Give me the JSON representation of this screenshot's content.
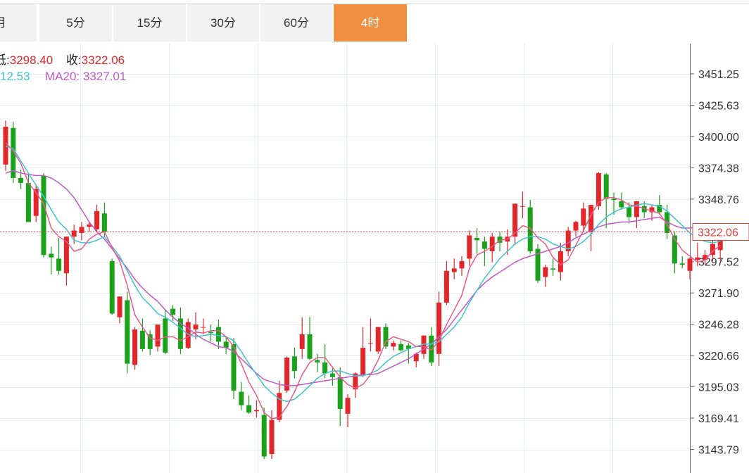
{
  "tabs": [
    {
      "label": "月",
      "active": false
    },
    {
      "label": "5分",
      "active": false
    },
    {
      "label": "15分",
      "active": false
    },
    {
      "label": "30分",
      "active": false
    },
    {
      "label": "60分",
      "active": false
    },
    {
      "label": "4时",
      "active": true
    }
  ],
  "ohlc_info": {
    "low_label": "低:",
    "low_value": "3298.40",
    "close_label": "收:",
    "close_value": "3322.06"
  },
  "ma_info": {
    "ma10_value": "12.53",
    "ma20_label": "MA20:",
    "ma20_value": "3327.01"
  },
  "current_price_label": "3322.06",
  "colors": {
    "up": "#e3262a",
    "down": "#1aa31a",
    "ma5": "#ea5a8a",
    "ma10": "#41c4cf",
    "ma20": "#c058c8",
    "tab_active": "#f08f3f",
    "price_line": "#e8403e"
  },
  "chart_data": {
    "type": "candlestick",
    "ylim": [
      3124.5,
      3476.0
    ],
    "y_ticks": [
      "3451.25",
      "3425.63",
      "3400.00",
      "3374.38",
      "3348.76",
      "3322.06",
      "3297.52",
      "3271.90",
      "3246.28",
      "3220.66",
      "3195.03",
      "3169.41",
      "3143.79"
    ],
    "current_price": 3322.06,
    "candles": [
      [
        3377,
        3413,
        3372,
        3408
      ],
      [
        3407,
        3412,
        3362,
        3366
      ],
      [
        3366,
        3373,
        3357,
        3362
      ],
      [
        3362,
        3369,
        3330,
        3330
      ],
      [
        3335,
        3361,
        3330,
        3357
      ],
      [
        3368,
        3370,
        3301,
        3303
      ],
      [
        3304,
        3310,
        3287,
        3301
      ],
      [
        3300,
        3317,
        3287,
        3290
      ],
      [
        3288,
        3315,
        3278,
        3318
      ],
      [
        3318,
        3328,
        3312,
        3323
      ],
      [
        3321,
        3330,
        3315,
        3326
      ],
      [
        3326,
        3330,
        3322,
        3328
      ],
      [
        3324,
        3344,
        3322,
        3339
      ],
      [
        3337,
        3346,
        3318,
        3322
      ],
      [
        3298,
        3300,
        3254,
        3255
      ],
      [
        3252,
        3268,
        3247,
        3269
      ],
      [
        3266,
        3273,
        3206,
        3214
      ],
      [
        3213,
        3244,
        3209,
        3242
      ],
      [
        3241,
        3251,
        3224,
        3226
      ],
      [
        3238,
        3241,
        3221,
        3226
      ],
      [
        3228,
        3246,
        3224,
        3246
      ],
      [
        3251,
        3258,
        3222,
        3223
      ],
      [
        3259,
        3262,
        3249,
        3254
      ],
      [
        3251,
        3260,
        3222,
        3226
      ],
      [
        3227,
        3251,
        3226,
        3248
      ],
      [
        3242,
        3256,
        3234,
        3246
      ],
      [
        3244,
        3251,
        3238,
        3244
      ],
      [
        3240,
        3246,
        3232,
        3239
      ],
      [
        3244,
        3250,
        3226,
        3232
      ],
      [
        3232,
        3236,
        3222,
        3227
      ],
      [
        3230,
        3235,
        3185,
        3192
      ],
      [
        3191,
        3199,
        3176,
        3180
      ],
      [
        3180,
        3188,
        3173,
        3174
      ],
      [
        3175,
        3184,
        3170,
        3176
      ],
      [
        3172,
        3178,
        3136,
        3138
      ],
      [
        3140,
        3176,
        3136,
        3168
      ],
      [
        3168,
        3200,
        3166,
        3190
      ],
      [
        3192,
        3220,
        3190,
        3219
      ],
      [
        3220,
        3227,
        3202,
        3208
      ],
      [
        3226,
        3252,
        3218,
        3238
      ],
      [
        3238,
        3252,
        3217,
        3218
      ],
      [
        3217,
        3222,
        3207,
        3215
      ],
      [
        3215,
        3230,
        3202,
        3206
      ],
      [
        3206,
        3211,
        3196,
        3203
      ],
      [
        3203,
        3211,
        3163,
        3177
      ],
      [
        3173,
        3189,
        3162,
        3186
      ],
      [
        3193,
        3207,
        3186,
        3206
      ],
      [
        3205,
        3244,
        3203,
        3227
      ],
      [
        3231,
        3251,
        3224,
        3231
      ],
      [
        3224,
        3244,
        3222,
        3244
      ],
      [
        3244,
        3247,
        3226,
        3228
      ],
      [
        3228,
        3233,
        3225,
        3231
      ],
      [
        3230,
        3233,
        3224,
        3225
      ],
      [
        3229,
        3231,
        3214,
        3226
      ],
      [
        3216,
        3223,
        3211,
        3222
      ],
      [
        3222,
        3237,
        3218,
        3237
      ],
      [
        3237,
        3244,
        3212,
        3215
      ],
      [
        3222,
        3273,
        3212,
        3264
      ],
      [
        3264,
        3298,
        3262,
        3290
      ],
      [
        3289,
        3300,
        3283,
        3292
      ],
      [
        3292,
        3302,
        3286,
        3298
      ],
      [
        3300,
        3323,
        3294,
        3319
      ],
      [
        3317,
        3325,
        3304,
        3315
      ],
      [
        3314,
        3318,
        3294,
        3308
      ],
      [
        3306,
        3321,
        3297,
        3318
      ],
      [
        3318,
        3322,
        3306,
        3313
      ],
      [
        3314,
        3324,
        3303,
        3318
      ],
      [
        3318,
        3345,
        3311,
        3345
      ],
      [
        3343,
        3355,
        3333,
        3343
      ],
      [
        3342,
        3348,
        3304,
        3306
      ],
      [
        3308,
        3312,
        3280,
        3282
      ],
      [
        3285,
        3295,
        3277,
        3293
      ],
      [
        3292,
        3300,
        3286,
        3291
      ],
      [
        3289,
        3313,
        3282,
        3306
      ],
      [
        3306,
        3326,
        3302,
        3323
      ],
      [
        3323,
        3331,
        3318,
        3330
      ],
      [
        3327,
        3346,
        3322,
        3341
      ],
      [
        3322,
        3344,
        3306,
        3344
      ],
      [
        3343,
        3371,
        3340,
        3370
      ],
      [
        3369,
        3370,
        3325,
        3349
      ],
      [
        3349,
        3354,
        3336,
        3348
      ],
      [
        3347,
        3354,
        3340,
        3342
      ],
      [
        3342,
        3346,
        3329,
        3334
      ],
      [
        3334,
        3347,
        3325,
        3347
      ],
      [
        3343,
        3347,
        3333,
        3338
      ],
      [
        3338,
        3344,
        3331,
        3342
      ],
      [
        3344,
        3352,
        3336,
        3338
      ],
      [
        3338,
        3344,
        3316,
        3321
      ],
      [
        3319,
        3322,
        3288,
        3296
      ],
      [
        3296,
        3302,
        3292,
        3295
      ],
      [
        3290,
        3301,
        3283,
        3300
      ],
      [
        3299,
        3313,
        3294,
        3301
      ],
      [
        3299,
        3307,
        3295,
        3303
      ],
      [
        3303,
        3320,
        3298,
        3312
      ],
      [
        3307,
        3327,
        3298,
        3322
      ]
    ],
    "ma5": [
      3395,
      3388,
      3378,
      3362,
      3354,
      3345,
      3325,
      3318,
      3314,
      3306,
      3308,
      3316,
      3320,
      3322,
      3309,
      3298,
      3278,
      3254,
      3244,
      3235,
      3233,
      3236,
      3236,
      3233,
      3236,
      3240,
      3239,
      3241,
      3241,
      3236,
      3228,
      3214,
      3199,
      3188,
      3174,
      3169,
      3170,
      3179,
      3191,
      3205,
      3215,
      3219,
      3219,
      3211,
      3203,
      3197,
      3194,
      3197,
      3205,
      3217,
      3232,
      3236,
      3234,
      3232,
      3228,
      3228,
      3225,
      3233,
      3246,
      3258,
      3270,
      3292,
      3303,
      3306,
      3310,
      3315,
      3316,
      3321,
      3327,
      3325,
      3317,
      3312,
      3301,
      3295,
      3299,
      3311,
      3323,
      3336,
      3346,
      3350,
      3350,
      3348,
      3344,
      3343,
      3341,
      3339,
      3337,
      3328,
      3316,
      3307,
      3302,
      3297,
      3299,
      3306,
      3311
    ],
    "ma10": [
      3392,
      3390,
      3380,
      3370,
      3360,
      3351,
      3340,
      3330,
      3324,
      3315,
      3313,
      3313,
      3315,
      3318,
      3310,
      3302,
      3290,
      3278,
      3268,
      3262,
      3255,
      3252,
      3248,
      3243,
      3238,
      3236,
      3237,
      3238,
      3237,
      3236,
      3233,
      3224,
      3214,
      3205,
      3196,
      3190,
      3185,
      3183,
      3185,
      3190,
      3196,
      3202,
      3206,
      3208,
      3208,
      3206,
      3204,
      3204,
      3206,
      3209,
      3215,
      3220,
      3223,
      3226,
      3228,
      3230,
      3230,
      3232,
      3238,
      3244,
      3252,
      3264,
      3274,
      3284,
      3292,
      3300,
      3306,
      3312,
      3316,
      3318,
      3318,
      3316,
      3312,
      3310,
      3308,
      3310,
      3314,
      3320,
      3328,
      3334,
      3338,
      3341,
      3342,
      3344,
      3345,
      3344,
      3343,
      3339,
      3333,
      3327,
      3321,
      3317,
      3314,
      3313,
      3314
    ],
    "ma20": [
      3370,
      3372,
      3370,
      3369,
      3368,
      3368,
      3366,
      3362,
      3357,
      3350,
      3340,
      3330,
      3322,
      3316,
      3308,
      3300,
      3292,
      3283,
      3276,
      3270,
      3265,
      3258,
      3252,
      3247,
      3243,
      3238,
      3234,
      3231,
      3228,
      3227,
      3224,
      3218,
      3212,
      3206,
      3201,
      3199,
      3197,
      3196,
      3196,
      3197,
      3198,
      3199,
      3200,
      3201,
      3202,
      3203,
      3204,
      3205,
      3205,
      3206,
      3209,
      3212,
      3215,
      3218,
      3222,
      3226,
      3230,
      3236,
      3242,
      3250,
      3258,
      3266,
      3274,
      3280,
      3285,
      3289,
      3293,
      3297,
      3300,
      3302,
      3304,
      3306,
      3308,
      3310,
      3313,
      3317,
      3320,
      3323,
      3326,
      3328,
      3329,
      3330,
      3330,
      3331,
      3332,
      3333,
      3334,
      3330,
      3327,
      3325,
      3325,
      3326,
      3326,
      3327,
      3327
    ]
  }
}
